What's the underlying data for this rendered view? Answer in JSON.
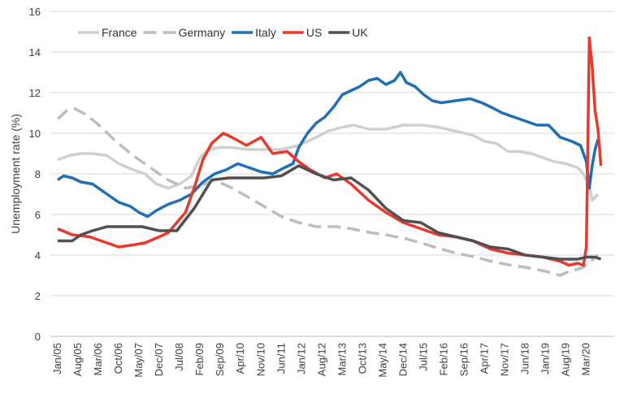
{
  "chart_data": {
    "type": "line",
    "ylabel": "Unemployment rate (%)",
    "xlabel": "",
    "ylim": [
      0,
      16
    ],
    "y_ticks": [
      0,
      2,
      4,
      6,
      8,
      10,
      12,
      14,
      16
    ],
    "x_range": [
      "2005-01",
      "2020-07"
    ],
    "x_ticks": [
      "Jan/05",
      "Aug/05",
      "Mar/06",
      "Oct/06",
      "May/07",
      "Dec/07",
      "Jul/08",
      "Feb/09",
      "Sep/09",
      "Apr/10",
      "Nov/10",
      "Jun/11",
      "Jan/12",
      "Aug/12",
      "Mar/13",
      "Oct/13",
      "May/14",
      "Dec/14",
      "Jul/15",
      "Feb/16",
      "Sep/16",
      "Apr/17",
      "Nov/17",
      "Jun/18",
      "Jan/19",
      "Aug/19",
      "Mar/20"
    ],
    "grid": "horizontal",
    "legend_position": "top-left",
    "series": [
      {
        "name": "France",
        "color": "#d0d0d0",
        "dash": "solid",
        "points": [
          [
            "2005-01",
            8.7
          ],
          [
            "2005-05",
            8.9
          ],
          [
            "2005-09",
            9.0
          ],
          [
            "2006-01",
            9.0
          ],
          [
            "2006-06",
            8.9
          ],
          [
            "2006-10",
            8.5
          ],
          [
            "2007-03",
            8.2
          ],
          [
            "2007-07",
            8.0
          ],
          [
            "2007-11",
            7.5
          ],
          [
            "2008-03",
            7.3
          ],
          [
            "2008-07",
            7.5
          ],
          [
            "2008-11",
            7.9
          ],
          [
            "2009-02",
            8.8
          ],
          [
            "2009-05",
            9.2
          ],
          [
            "2009-09",
            9.3
          ],
          [
            "2010-01",
            9.3
          ],
          [
            "2010-06",
            9.2
          ],
          [
            "2010-12",
            9.2
          ],
          [
            "2011-06",
            9.2
          ],
          [
            "2011-12",
            9.4
          ],
          [
            "2012-06",
            9.8
          ],
          [
            "2012-10",
            10.1
          ],
          [
            "2013-03",
            10.3
          ],
          [
            "2013-07",
            10.4
          ],
          [
            "2013-12",
            10.2
          ],
          [
            "2014-06",
            10.2
          ],
          [
            "2014-12",
            10.4
          ],
          [
            "2015-06",
            10.4
          ],
          [
            "2015-12",
            10.3
          ],
          [
            "2016-06",
            10.1
          ],
          [
            "2016-12",
            9.9
          ],
          [
            "2017-04",
            9.6
          ],
          [
            "2017-08",
            9.5
          ],
          [
            "2017-12",
            9.1
          ],
          [
            "2018-04",
            9.1
          ],
          [
            "2018-08",
            9.0
          ],
          [
            "2018-12",
            8.8
          ],
          [
            "2019-04",
            8.6
          ],
          [
            "2019-08",
            8.5
          ],
          [
            "2019-12",
            8.3
          ],
          [
            "2020-02",
            8.0
          ],
          [
            "2020-04",
            7.4
          ],
          [
            "2020-05",
            6.7
          ],
          [
            "2020-07",
            7.0
          ]
        ]
      },
      {
        "name": "Germany",
        "color": "#bdbdbd",
        "dash": "dash",
        "points": [
          [
            "2005-01",
            10.7
          ],
          [
            "2005-04",
            11.1
          ],
          [
            "2005-07",
            11.2
          ],
          [
            "2005-11",
            10.9
          ],
          [
            "2006-04",
            10.3
          ],
          [
            "2006-09",
            9.6
          ],
          [
            "2007-03",
            8.9
          ],
          [
            "2007-09",
            8.3
          ],
          [
            "2008-03",
            7.7
          ],
          [
            "2008-09",
            7.3
          ],
          [
            "2009-02",
            7.4
          ],
          [
            "2009-07",
            7.7
          ],
          [
            "2010-01",
            7.3
          ],
          [
            "2010-06",
            6.9
          ],
          [
            "2010-12",
            6.4
          ],
          [
            "2011-06",
            5.9
          ],
          [
            "2011-12",
            5.6
          ],
          [
            "2012-06",
            5.4
          ],
          [
            "2013-01",
            5.4
          ],
          [
            "2013-06",
            5.3
          ],
          [
            "2014-01",
            5.1
          ],
          [
            "2014-06",
            5.0
          ],
          [
            "2015-01",
            4.8
          ],
          [
            "2015-06",
            4.6
          ],
          [
            "2016-01",
            4.3
          ],
          [
            "2016-06",
            4.1
          ],
          [
            "2017-01",
            3.9
          ],
          [
            "2017-06",
            3.7
          ],
          [
            "2018-01",
            3.5
          ],
          [
            "2018-06",
            3.4
          ],
          [
            "2019-01",
            3.2
          ],
          [
            "2019-06",
            3.0
          ],
          [
            "2019-09",
            3.2
          ],
          [
            "2019-12",
            3.3
          ],
          [
            "2020-02",
            3.4
          ],
          [
            "2020-04",
            3.6
          ],
          [
            "2020-06",
            3.9
          ],
          [
            "2020-07",
            4.0
          ]
        ]
      },
      {
        "name": "Italy",
        "color": "#1f6fb6",
        "dash": "solid",
        "points": [
          [
            "2005-01",
            7.7
          ],
          [
            "2005-03",
            7.9
          ],
          [
            "2005-06",
            7.8
          ],
          [
            "2005-09",
            7.6
          ],
          [
            "2006-01",
            7.5
          ],
          [
            "2006-06",
            7.0
          ],
          [
            "2006-10",
            6.6
          ],
          [
            "2007-02",
            6.4
          ],
          [
            "2007-05",
            6.1
          ],
          [
            "2007-08",
            5.9
          ],
          [
            "2007-11",
            6.2
          ],
          [
            "2008-03",
            6.5
          ],
          [
            "2008-07",
            6.7
          ],
          [
            "2008-11",
            7.0
          ],
          [
            "2009-03",
            7.6
          ],
          [
            "2009-07",
            8.0
          ],
          [
            "2009-11",
            8.2
          ],
          [
            "2010-03",
            8.5
          ],
          [
            "2010-07",
            8.3
          ],
          [
            "2010-11",
            8.1
          ],
          [
            "2011-03",
            8.0
          ],
          [
            "2011-07",
            8.3
          ],
          [
            "2011-10",
            8.5
          ],
          [
            "2011-12",
            9.3
          ],
          [
            "2012-03",
            10.0
          ],
          [
            "2012-06",
            10.5
          ],
          [
            "2012-09",
            10.8
          ],
          [
            "2012-12",
            11.3
          ],
          [
            "2013-03",
            11.9
          ],
          [
            "2013-06",
            12.1
          ],
          [
            "2013-09",
            12.3
          ],
          [
            "2013-12",
            12.6
          ],
          [
            "2014-03",
            12.7
          ],
          [
            "2014-06",
            12.4
          ],
          [
            "2014-09",
            12.6
          ],
          [
            "2014-11",
            13.0
          ],
          [
            "2015-01",
            12.5
          ],
          [
            "2015-04",
            12.3
          ],
          [
            "2015-07",
            11.9
          ],
          [
            "2015-10",
            11.6
          ],
          [
            "2016-01",
            11.5
          ],
          [
            "2016-06",
            11.6
          ],
          [
            "2016-11",
            11.7
          ],
          [
            "2017-03",
            11.5
          ],
          [
            "2017-06",
            11.3
          ],
          [
            "2017-10",
            11.0
          ],
          [
            "2018-02",
            10.8
          ],
          [
            "2018-06",
            10.6
          ],
          [
            "2018-10",
            10.4
          ],
          [
            "2019-02",
            10.4
          ],
          [
            "2019-06",
            9.8
          ],
          [
            "2019-10",
            9.6
          ],
          [
            "2020-01",
            9.4
          ],
          [
            "2020-03",
            8.6
          ],
          [
            "2020-04",
            7.3
          ],
          [
            "2020-05",
            8.4
          ],
          [
            "2020-06",
            9.2
          ],
          [
            "2020-07",
            9.7
          ]
        ]
      },
      {
        "name": "US",
        "color": "#e8392c",
        "dash": "solid",
        "points": [
          [
            "2005-01",
            5.3
          ],
          [
            "2005-06",
            5.0
          ],
          [
            "2005-12",
            4.9
          ],
          [
            "2006-06",
            4.6
          ],
          [
            "2006-10",
            4.4
          ],
          [
            "2007-03",
            4.5
          ],
          [
            "2007-07",
            4.6
          ],
          [
            "2007-12",
            4.9
          ],
          [
            "2008-03",
            5.1
          ],
          [
            "2008-06",
            5.6
          ],
          [
            "2008-09",
            6.1
          ],
          [
            "2008-12",
            7.3
          ],
          [
            "2009-03",
            8.7
          ],
          [
            "2009-06",
            9.5
          ],
          [
            "2009-10",
            10.0
          ],
          [
            "2010-01",
            9.8
          ],
          [
            "2010-06",
            9.4
          ],
          [
            "2010-11",
            9.8
          ],
          [
            "2011-03",
            9.0
          ],
          [
            "2011-08",
            9.1
          ],
          [
            "2011-12",
            8.6
          ],
          [
            "2012-04",
            8.2
          ],
          [
            "2012-09",
            7.8
          ],
          [
            "2013-01",
            8.0
          ],
          [
            "2013-06",
            7.5
          ],
          [
            "2013-12",
            6.7
          ],
          [
            "2014-06",
            6.1
          ],
          [
            "2014-12",
            5.6
          ],
          [
            "2015-06",
            5.3
          ],
          [
            "2015-12",
            5.0
          ],
          [
            "2016-06",
            4.9
          ],
          [
            "2016-12",
            4.7
          ],
          [
            "2017-06",
            4.3
          ],
          [
            "2017-12",
            4.1
          ],
          [
            "2018-06",
            4.0
          ],
          [
            "2018-12",
            3.9
          ],
          [
            "2019-06",
            3.7
          ],
          [
            "2019-09",
            3.5
          ],
          [
            "2019-12",
            3.6
          ],
          [
            "2020-02",
            3.5
          ],
          [
            "2020-03",
            4.4
          ],
          [
            "2020-04",
            14.7
          ],
          [
            "2020-05",
            13.3
          ],
          [
            "2020-06",
            11.1
          ],
          [
            "2020-07",
            10.2
          ],
          [
            "2020-08",
            8.4
          ]
        ]
      },
      {
        "name": "UK",
        "color": "#505050",
        "dash": "solid",
        "points": [
          [
            "2005-01",
            4.7
          ],
          [
            "2005-06",
            4.7
          ],
          [
            "2005-09",
            5.0
          ],
          [
            "2006-01",
            5.2
          ],
          [
            "2006-06",
            5.4
          ],
          [
            "2006-12",
            5.4
          ],
          [
            "2007-06",
            5.4
          ],
          [
            "2007-12",
            5.2
          ],
          [
            "2008-06",
            5.2
          ],
          [
            "2008-12",
            6.3
          ],
          [
            "2009-06",
            7.7
          ],
          [
            "2009-12",
            7.8
          ],
          [
            "2010-06",
            7.8
          ],
          [
            "2010-12",
            7.8
          ],
          [
            "2011-06",
            7.9
          ],
          [
            "2011-12",
            8.4
          ],
          [
            "2012-06",
            8.0
          ],
          [
            "2012-12",
            7.7
          ],
          [
            "2013-06",
            7.8
          ],
          [
            "2013-12",
            7.2
          ],
          [
            "2014-06",
            6.3
          ],
          [
            "2014-12",
            5.7
          ],
          [
            "2015-06",
            5.6
          ],
          [
            "2015-12",
            5.1
          ],
          [
            "2016-06",
            4.9
          ],
          [
            "2016-12",
            4.7
          ],
          [
            "2017-06",
            4.4
          ],
          [
            "2017-12",
            4.3
          ],
          [
            "2018-06",
            4.0
          ],
          [
            "2018-12",
            3.9
          ],
          [
            "2019-06",
            3.8
          ],
          [
            "2019-12",
            3.8
          ],
          [
            "2020-03",
            3.9
          ],
          [
            "2020-06",
            3.9
          ],
          [
            "2020-08",
            3.8
          ]
        ]
      }
    ]
  }
}
